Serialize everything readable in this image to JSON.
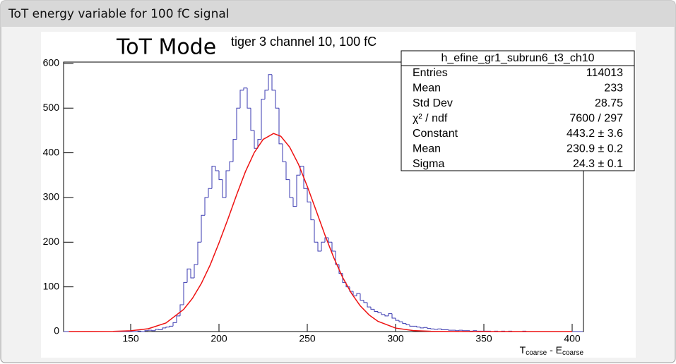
{
  "slide": {
    "title": "ToT energy variable for 100 fC signal"
  },
  "chart_data": {
    "type": "histogram",
    "title": "ToT Mode",
    "subtitle": "tiger 3 channel 10, 100 fC",
    "x_label": [
      "T",
      "coarse",
      " - E",
      "coarse"
    ],
    "xlim": [
      112,
      406.4
    ],
    "ylim": [
      0,
      603
    ],
    "xticks": [
      150,
      200,
      250,
      300,
      350,
      400
    ],
    "yticks": [
      0,
      100,
      200,
      300,
      400,
      500,
      600
    ],
    "bins": [
      112,
      114,
      116,
      118,
      120,
      122,
      124,
      126,
      128,
      130,
      132,
      134,
      136,
      138,
      140,
      142,
      144,
      146,
      148,
      150,
      152,
      154,
      156,
      158,
      160,
      162,
      164,
      166,
      168,
      170,
      172,
      174,
      176,
      178,
      180,
      182,
      184,
      186,
      188,
      190,
      192,
      194,
      196,
      198,
      200,
      202,
      204,
      206,
      208,
      210,
      212,
      214,
      216,
      218,
      220,
      222,
      224,
      226,
      228,
      230,
      232,
      234,
      236,
      238,
      240,
      242,
      244,
      246,
      248,
      250,
      252,
      254,
      256,
      258,
      260,
      262,
      264,
      266,
      268,
      270,
      272,
      274,
      276,
      278,
      280,
      282,
      284,
      286,
      288,
      290,
      292,
      294,
      296,
      298,
      300,
      302,
      304,
      306,
      308,
      310,
      312,
      314,
      316,
      318,
      320,
      322,
      324,
      326,
      328,
      330,
      332,
      334,
      336,
      338,
      340,
      342,
      344,
      346,
      348,
      350,
      352,
      354,
      356,
      358,
      360,
      362,
      364,
      366,
      368,
      370,
      372,
      374,
      376,
      378,
      380,
      382,
      384,
      386,
      388,
      390,
      392,
      394,
      396,
      398,
      400,
      402,
      404,
      406
    ],
    "values": [
      0,
      0,
      0,
      0,
      0,
      0,
      0,
      0,
      0,
      0,
      0,
      0,
      0,
      0,
      0,
      0,
      0,
      0,
      0,
      0,
      0,
      1,
      0,
      2,
      3,
      2,
      5,
      4,
      8,
      10,
      12,
      20,
      35,
      60,
      110,
      140,
      120,
      150,
      200,
      260,
      300,
      320,
      370,
      360,
      340,
      300,
      360,
      380,
      430,
      500,
      540,
      545,
      500,
      450,
      410,
      430,
      520,
      540,
      575,
      540,
      500,
      420,
      380,
      340,
      300,
      280,
      350,
      370,
      320,
      290,
      250,
      200,
      180,
      200,
      210,
      200,
      180,
      150,
      130,
      110,
      100,
      90,
      80,
      85,
      70,
      65,
      55,
      50,
      45,
      42,
      38,
      35,
      40,
      30,
      25,
      22,
      18,
      15,
      12,
      12,
      10,
      8,
      9,
      7,
      6,
      5,
      6,
      4,
      4,
      3,
      3,
      2,
      3,
      2,
      2,
      1,
      2,
      1,
      1,
      1,
      1,
      0,
      1,
      0,
      1,
      0,
      1,
      0,
      0,
      0,
      1,
      0,
      0,
      0,
      0,
      0,
      0,
      0,
      0,
      0,
      0,
      0,
      0,
      0,
      0,
      0,
      0
    ],
    "color": "#3a3ab0",
    "fit": {
      "color": "#ee1111",
      "x": [
        115,
        140,
        150,
        160,
        170,
        180,
        185,
        190,
        195,
        200,
        205,
        210,
        215,
        220,
        225,
        230.9,
        235,
        240,
        245,
        250,
        255,
        260,
        265,
        270,
        275,
        280,
        285,
        290,
        300,
        310,
        320,
        340,
        400
      ],
      "values": [
        0,
        0.4,
        1.74,
        6.3,
        19.2,
        49.6,
        74.4,
        107.5,
        148.9,
        198.3,
        251,
        306,
        358,
        400.6,
        430,
        443.2,
        437,
        413,
        374.5,
        325,
        271,
        216,
        165.5,
        121.3,
        85.6,
        57.5,
        37.2,
        23,
        7.8,
        2.2,
        0.53,
        0.02,
        0
      ]
    },
    "stats": {
      "name": "h_efine_gr1_subrun6_t3_ch10",
      "rows": [
        [
          "Entries",
          "114013"
        ],
        [
          "Mean",
          "233"
        ],
        [
          "Std Dev",
          "28.75"
        ],
        [
          "χ² / ndf",
          "7600 / 297"
        ],
        [
          "Constant",
          "443.2 ± 3.6"
        ],
        [
          "Mean",
          "230.9 ± 0.2"
        ],
        [
          "Sigma",
          "24.3 ± 0.1"
        ]
      ]
    }
  }
}
